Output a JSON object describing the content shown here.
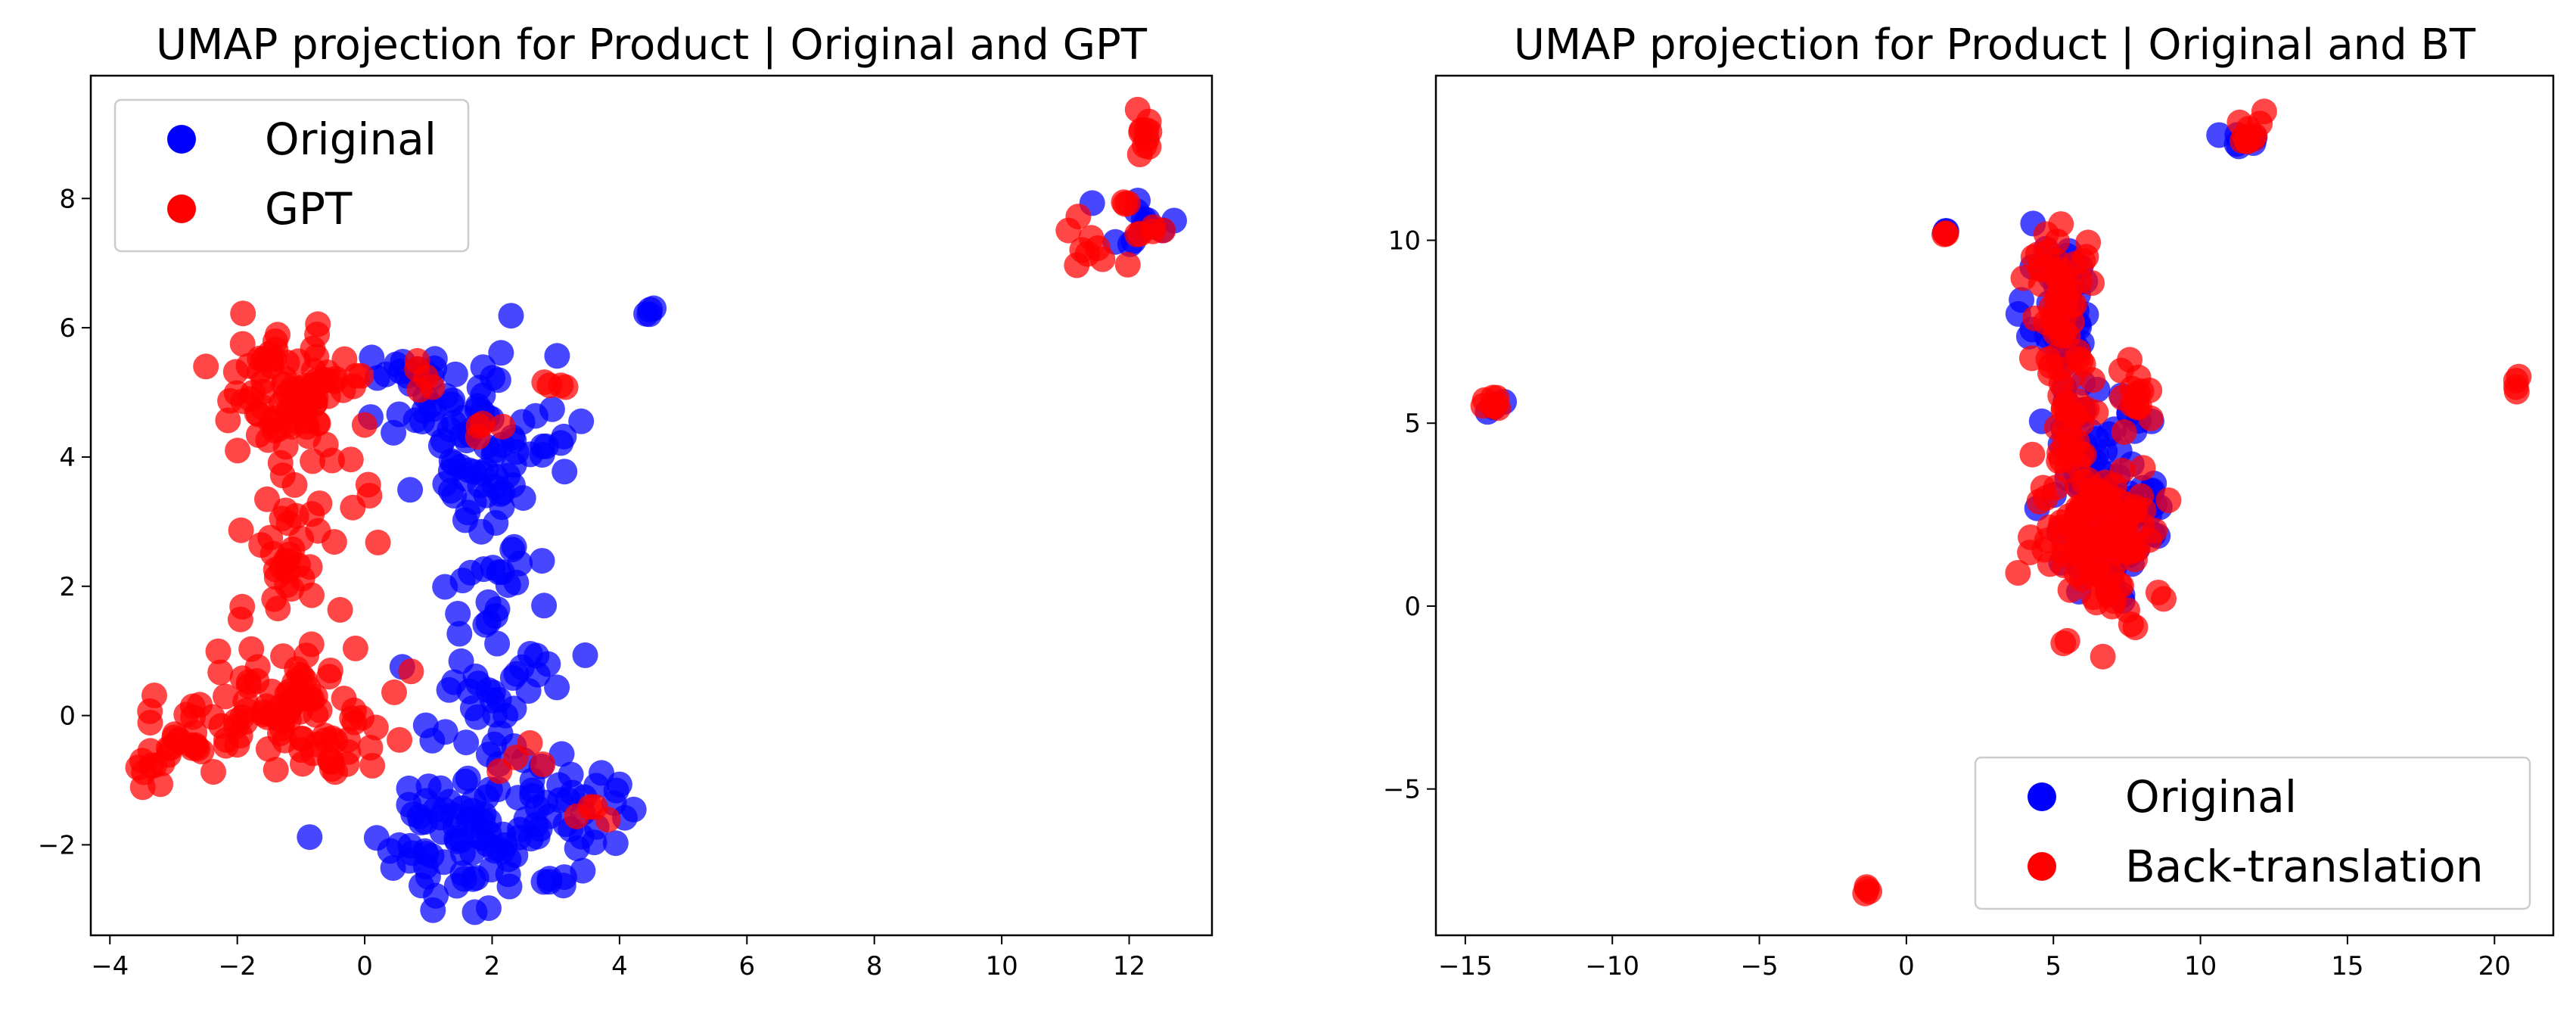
{
  "chart_data": [
    {
      "type": "scatter",
      "title": "UMAP projection for Product | Original and GPT",
      "xlabel": "",
      "ylabel": "",
      "xlim": [
        -4.3,
        13.3
      ],
      "ylim": [
        -3.4,
        9.9
      ],
      "xticks": [
        -4,
        -2,
        0,
        2,
        4,
        6,
        8,
        10,
        12
      ],
      "yticks": [
        -2,
        0,
        2,
        4,
        6,
        8
      ],
      "grid": false,
      "legend_position": "upper-left",
      "series": [
        {
          "name": "Original",
          "color": "#0000ff",
          "clusters": [
            {
              "cx": 1.6,
              "cy": 4.4,
              "sx": 0.7,
              "sy": 0.6,
              "n": 50
            },
            {
              "cx": 2.0,
              "cy": 2.5,
              "sx": 0.35,
              "sy": 1.0,
              "n": 45
            },
            {
              "cx": 2.0,
              "cy": 0.0,
              "sx": 0.55,
              "sy": 0.8,
              "n": 40
            },
            {
              "cx": 1.9,
              "cy": -1.8,
              "sx": 0.85,
              "sy": 0.6,
              "n": 95
            },
            {
              "cx": 3.4,
              "cy": -1.3,
              "sx": 0.35,
              "sy": 0.35,
              "n": 15
            },
            {
              "cx": 0.7,
              "cy": 5.1,
              "sx": 0.5,
              "sy": 0.3,
              "n": 15
            },
            {
              "cx": 2.8,
              "cy": 4.2,
              "sx": 0.3,
              "sy": 0.35,
              "n": 12
            },
            {
              "cx": 4.5,
              "cy": 6.25,
              "sx": 0.04,
              "sy": 0.03,
              "n": 4
            },
            {
              "cx": 12.1,
              "cy": 7.6,
              "sx": 0.25,
              "sy": 0.2,
              "n": 12
            }
          ]
        },
        {
          "name": "GPT",
          "color": "#ff0000",
          "clusters": [
            {
              "cx": -1.3,
              "cy": 5.0,
              "sx": 0.5,
              "sy": 0.45,
              "n": 75
            },
            {
              "cx": -1.2,
              "cy": 2.8,
              "sx": 0.3,
              "sy": 1.0,
              "n": 45
            },
            {
              "cx": -1.6,
              "cy": 0.2,
              "sx": 0.8,
              "sy": 0.5,
              "n": 60
            },
            {
              "cx": -3.0,
              "cy": -0.5,
              "sx": 0.4,
              "sy": 0.25,
              "n": 30
            },
            {
              "cx": -0.5,
              "cy": -0.4,
              "sx": 0.4,
              "sy": 0.35,
              "n": 30
            },
            {
              "cx": -0.4,
              "cy": 5.2,
              "sx": 0.25,
              "sy": 0.15,
              "n": 8
            },
            {
              "cx": 1.0,
              "cy": 5.4,
              "sx": 0.12,
              "sy": 0.12,
              "n": 5
            },
            {
              "cx": 3.0,
              "cy": 5.08,
              "sx": 0.12,
              "sy": 0.05,
              "n": 4
            },
            {
              "cx": 1.9,
              "cy": 4.55,
              "sx": 0.15,
              "sy": 0.15,
              "n": 4
            },
            {
              "cx": 0.0,
              "cy": 3.3,
              "sx": 0.15,
              "sy": 0.35,
              "n": 5
            },
            {
              "cx": 2.5,
              "cy": -0.7,
              "sx": 0.25,
              "sy": 0.25,
              "n": 4
            },
            {
              "cx": 3.6,
              "cy": -1.6,
              "sx": 0.15,
              "sy": 0.1,
              "n": 4
            },
            {
              "cx": 11.5,
              "cy": 7.3,
              "sx": 0.4,
              "sy": 0.2,
              "n": 10
            },
            {
              "cx": 12.3,
              "cy": 9.0,
              "sx": 0.12,
              "sy": 0.25,
              "n": 10
            },
            {
              "cx": 12.35,
              "cy": 7.5,
              "sx": 0.12,
              "sy": 0.12,
              "n": 4
            },
            {
              "cx": 11.9,
              "cy": 8.0,
              "sx": 0.08,
              "sy": 0.1,
              "n": 3
            }
          ]
        }
      ]
    },
    {
      "type": "scatter",
      "title": "UMAP projection for Product | Original and BT",
      "xlabel": "",
      "ylabel": "",
      "xlim": [
        -16.0,
        22.0
      ],
      "ylim": [
        -9.0,
        14.5
      ],
      "xticks": [
        -15,
        -10,
        -5,
        0,
        5,
        10,
        15,
        20
      ],
      "yticks": [
        -5,
        0,
        5,
        10
      ],
      "grid": false,
      "legend_position": "lower-right",
      "series": [
        {
          "name": "Original",
          "color": "#0000ff",
          "clusters": [
            {
              "cx": 5.2,
              "cy": 7.6,
              "sx": 0.6,
              "sy": 1.0,
              "n": 40
            },
            {
              "cx": 6.3,
              "cy": 3.5,
              "sx": 1.0,
              "sy": 1.3,
              "n": 70
            },
            {
              "cx": 7.6,
              "cy": 2.0,
              "sx": 0.6,
              "sy": 0.9,
              "n": 25
            },
            {
              "cx": 1.3,
              "cy": 10.2,
              "sx": 0.1,
              "sy": 0.08,
              "n": 3
            },
            {
              "cx": 11.5,
              "cy": 12.8,
              "sx": 0.4,
              "sy": 0.3,
              "n": 8
            },
            {
              "cx": -14.0,
              "cy": 5.6,
              "sx": 0.15,
              "sy": 0.12,
              "n": 4
            }
          ]
        },
        {
          "name": "Back-translation",
          "color": "#ff0000",
          "clusters": [
            {
              "cx": 5.3,
              "cy": 8.2,
              "sx": 0.55,
              "sy": 1.0,
              "n": 55
            },
            {
              "cx": 5.6,
              "cy": 5.0,
              "sx": 0.4,
              "sy": 1.0,
              "n": 30
            },
            {
              "cx": 6.6,
              "cy": 2.0,
              "sx": 1.1,
              "sy": 1.0,
              "n": 110
            },
            {
              "cx": 7.8,
              "cy": 5.8,
              "sx": 0.3,
              "sy": 0.6,
              "n": 15
            },
            {
              "cx": 7.6,
              "cy": -0.4,
              "sx": 0.15,
              "sy": 0.2,
              "n": 3
            },
            {
              "cx": 5.5,
              "cy": -0.9,
              "sx": 0.1,
              "sy": 0.08,
              "n": 2
            },
            {
              "cx": 1.3,
              "cy": 10.15,
              "sx": 0.08,
              "sy": 0.06,
              "n": 3
            },
            {
              "cx": 11.7,
              "cy": 13.0,
              "sx": 0.35,
              "sy": 0.3,
              "n": 10
            },
            {
              "cx": -14.0,
              "cy": 5.6,
              "sx": 0.18,
              "sy": 0.15,
              "n": 8
            },
            {
              "cx": 20.8,
              "cy": 6.0,
              "sx": 0.08,
              "sy": 0.1,
              "n": 4
            },
            {
              "cx": -1.3,
              "cy": -7.8,
              "sx": 0.1,
              "sy": 0.05,
              "n": 4
            }
          ]
        }
      ]
    }
  ]
}
